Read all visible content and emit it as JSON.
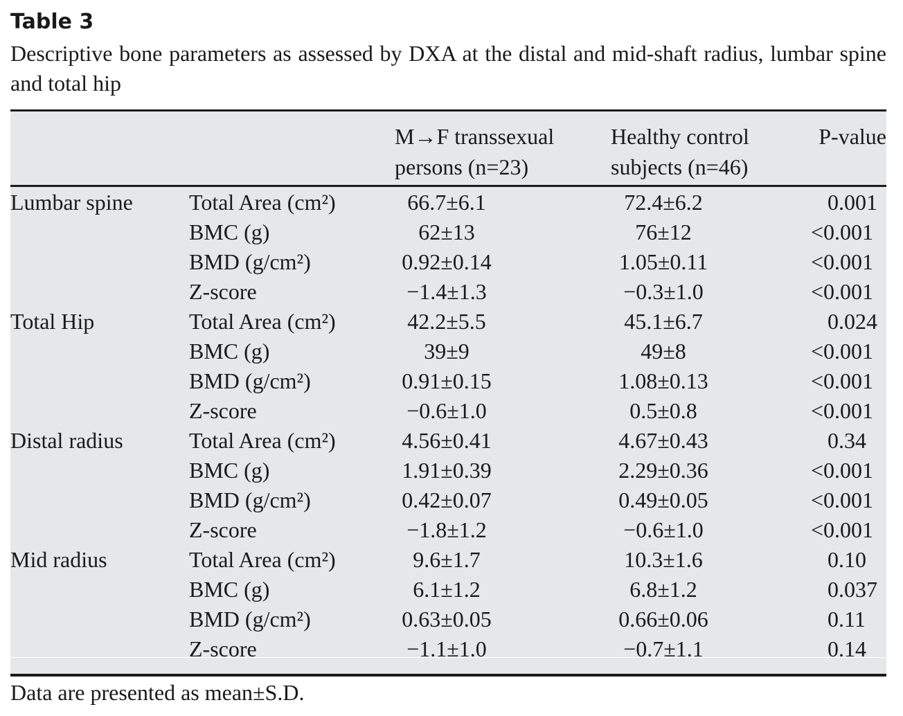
{
  "title": "Table 3",
  "caption": "Descriptive bone parameters as assessed by DXA at the distal and mid-shaft radius, lumbar spine and total hip",
  "header": {
    "col_mtf_line1": "M→F transsexual",
    "col_mtf_line2": "persons (n=23)",
    "col_ctrl_line1": "Healthy control",
    "col_ctrl_line2": "subjects (n=46)",
    "col_p": "P-value"
  },
  "rows": [
    {
      "group": "Lumbar spine",
      "param": "Total Area (cm²)",
      "mtf": "66.7±6.1",
      "ctrl": "72.4±6.2",
      "p": "0.001"
    },
    {
      "group": "",
      "param": "BMC (g)",
      "mtf": "62±13",
      "ctrl": "76±12",
      "p": "<0.001"
    },
    {
      "group": "",
      "param": "BMD (g/cm²)",
      "mtf": "0.92±0.14",
      "ctrl": "1.05±0.11",
      "p": "<0.001"
    },
    {
      "group": "",
      "param": "Z-score",
      "mtf": "−1.4±1.3",
      "ctrl": "−0.3±1.0",
      "p": "<0.001"
    },
    {
      "group": "Total Hip",
      "param": "Total Area (cm²)",
      "mtf": "42.2±5.5",
      "ctrl": "45.1±6.7",
      "p": "0.024"
    },
    {
      "group": "",
      "param": "BMC (g)",
      "mtf": "39±9",
      "ctrl": "49±8",
      "p": "<0.001"
    },
    {
      "group": "",
      "param": "BMD (g/cm²)",
      "mtf": "0.91±0.15",
      "ctrl": "1.08±0.13",
      "p": "<0.001"
    },
    {
      "group": "",
      "param": "Z-score",
      "mtf": "−0.6±1.0",
      "ctrl": "0.5±0.8",
      "p": "<0.001"
    },
    {
      "group": "Distal radius",
      "param": "Total Area (cm²)",
      "mtf": "4.56±0.41",
      "ctrl": "4.67±0.43",
      "p": "0.34"
    },
    {
      "group": "",
      "param": "BMC (g)",
      "mtf": "1.91±0.39",
      "ctrl": "2.29±0.36",
      "p": "<0.001"
    },
    {
      "group": "",
      "param": "BMD (g/cm²)",
      "mtf": "0.42±0.07",
      "ctrl": "0.49±0.05",
      "p": "<0.001"
    },
    {
      "group": "",
      "param": "Z-score",
      "mtf": "−1.8±1.2",
      "ctrl": "−0.6±1.0",
      "p": "<0.001"
    },
    {
      "group": "Mid radius",
      "param": "Total Area (cm²)",
      "mtf": "9.6±1.7",
      "ctrl": "10.3±1.6",
      "p": "0.10"
    },
    {
      "group": "",
      "param": "BMC (g)",
      "mtf": "6.1±1.2",
      "ctrl": "6.8±1.2",
      "p": "0.037"
    },
    {
      "group": "",
      "param": "BMD (g/cm²)",
      "mtf": "0.63±0.05",
      "ctrl": "0.66±0.06",
      "p": "0.11"
    },
    {
      "group": "",
      "param": "Z-score",
      "mtf": "−1.1±1.0",
      "ctrl": "−0.7±1.1",
      "p": "0.14"
    }
  ],
  "footnote": "Data are presented as mean±S.D.",
  "colors": {
    "table_background": "#e6e7e9",
    "rule": "#1a1a1a"
  }
}
